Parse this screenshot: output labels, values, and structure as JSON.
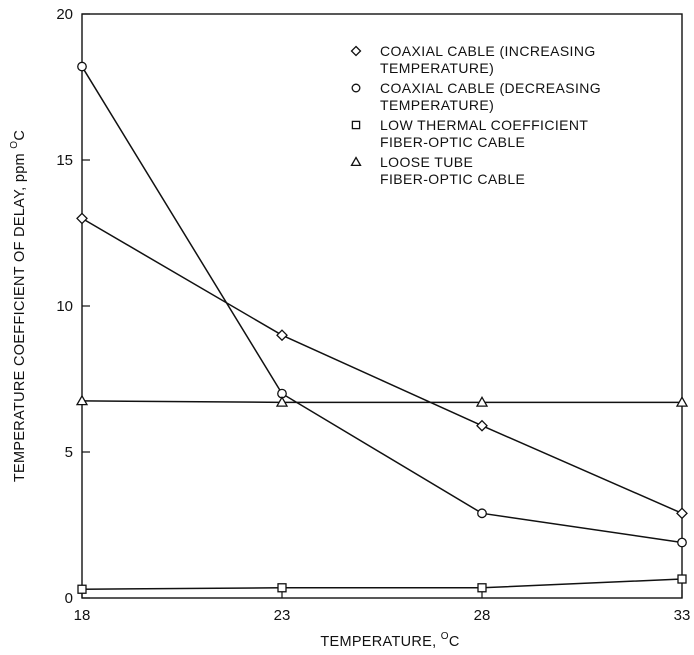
{
  "chart_data": {
    "type": "line",
    "xlabel": "TEMPERATURE, °C",
    "ylabel": "TEMPERATURE COEFFICIENT OF DELAY, ppm °C",
    "xlim": [
      18,
      33
    ],
    "ylim": [
      0,
      20
    ],
    "x_ticks": [
      "18",
      "23",
      "28",
      "33"
    ],
    "y_ticks": [
      "0",
      "5",
      "10",
      "15",
      "20"
    ],
    "grid": false,
    "legend_position": "top-right",
    "x": [
      18,
      23,
      28,
      33
    ],
    "series": [
      {
        "name": "COAXIAL CABLE (INCREASING TEMPERATURE)",
        "marker": "diamond",
        "values": [
          13.0,
          9.0,
          5.9,
          2.9
        ]
      },
      {
        "name": "COAXIAL CABLE (DECREASING TEMPERATURE)",
        "marker": "circle",
        "values": [
          18.2,
          7.0,
          2.9,
          1.9
        ]
      },
      {
        "name": "LOW THERMAL COEFFICIENT FIBER-OPTIC CABLE",
        "marker": "square",
        "values": [
          0.3,
          0.35,
          0.35,
          0.65
        ]
      },
      {
        "name": "LOOSE TUBE FIBER-OPTIC CABLE",
        "marker": "triangle",
        "values": [
          6.75,
          6.7,
          6.7,
          6.7
        ]
      }
    ],
    "legend_lines": [
      [
        "COAXIAL CABLE (INCREASING",
        "TEMPERATURE)"
      ],
      [
        "COAXIAL CABLE (DECREASING",
        "TEMPERATURE)"
      ],
      [
        "LOW THERMAL COEFFICIENT",
        "FIBER-OPTIC CABLE"
      ],
      [
        "LOOSE TUBE",
        "FIBER-OPTIC CABLE"
      ]
    ],
    "xlabel_parts": {
      "main": "TEMPERATURE, ",
      "sup": "O",
      "unit": "C"
    },
    "ylabel_parts": {
      "main": "TEMPERATURE COEFFICIENT OF DELAY, ppm ",
      "sup": "O",
      "unit": "C"
    }
  }
}
